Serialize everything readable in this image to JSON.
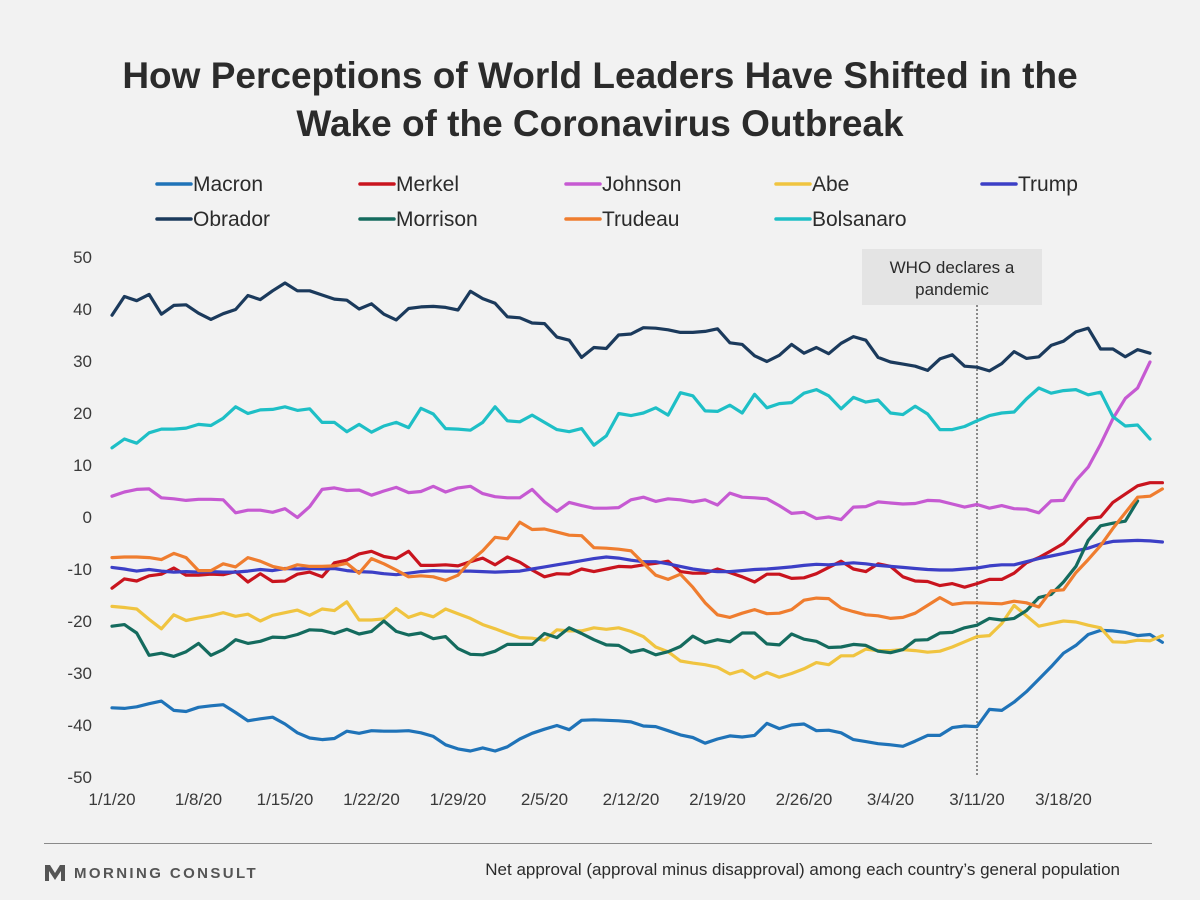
{
  "title_line1": "How Perceptions of World Leaders Have Shifted in the",
  "title_line2": "Wake of the Coronavirus Outbreak",
  "annotation": [
    "WHO declares a",
    "pandemic"
  ],
  "footer": {
    "logo_text": "MORNING CONSULT",
    "note": "Net approval (approval minus disapproval) among each country’s general population"
  },
  "chart_data": {
    "type": "line",
    "title": "How Perceptions of World Leaders Have Shifted in the Wake of the Coronavirus Outbreak",
    "ylim": [
      -50,
      50
    ],
    "yticks": [
      50,
      40,
      30,
      20,
      10,
      0,
      -10,
      -20,
      -30,
      -40,
      -50
    ],
    "x_start": "1/1/20",
    "x_end": "3/24/20",
    "xticks": [
      "1/1/20",
      "1/8/20",
      "1/15/20",
      "1/22/20",
      "1/29/20",
      "2/5/20",
      "2/12/20",
      "2/19/20",
      "2/26/20",
      "3/4/20",
      "3/11/20",
      "3/18/20"
    ],
    "event_line": {
      "date": "3/11/20",
      "label": "WHO declares a pandemic"
    },
    "legend_position": "top",
    "series": [
      {
        "name": "Macron",
        "color": "#1f73b8",
        "values": [
          -36.7,
          -36.8,
          -36.5,
          -35.9,
          -35.4,
          -37.2,
          -37.4,
          -36.6,
          -36.3,
          -36.1,
          -37.6,
          -39.2,
          -38.8,
          -38.5,
          -39.8,
          -41.5,
          -42.5,
          -42.8,
          -42.6,
          -41.2,
          -41.6,
          -41.1,
          -41.2,
          -41.2,
          -41.1,
          -41.5,
          -42.2,
          -43.8,
          -44.6,
          -45.0,
          -44.4,
          -45.0,
          -44.2,
          -42.7,
          -41.6,
          -40.8,
          -40.1,
          -40.9,
          -39.1,
          -39.0,
          -39.1,
          -39.2,
          -39.4,
          -40.2,
          -40.3,
          -41.1,
          -41.9,
          -42.4,
          -43.5,
          -42.7,
          -42.1,
          -42.3,
          -42.0,
          -39.7,
          -40.7,
          -40.0,
          -39.8,
          -41.1,
          -41.0,
          -41.5,
          -42.8,
          -43.2,
          -43.6,
          -43.8,
          -44.1,
          -43.1,
          -42.0,
          -42.0,
          -40.5,
          -40.2,
          -40.3,
          -37.0,
          -37.2,
          -35.6,
          -33.6,
          -31.2,
          -28.8,
          -26.2,
          -24.7,
          -22.6,
          -21.8,
          -21.9,
          -22.2,
          -22.8,
          -22.6,
          -24.1
        ]
      },
      {
        "name": "Merkel",
        "color": "#c9141e",
        "values": [
          -13.7,
          -11.9,
          -12.3,
          -11.3,
          -11.0,
          -9.8,
          -11.2,
          -11.2,
          -11.0,
          -11.1,
          -10.5,
          -12.5,
          -10.9,
          -12.4,
          -12.3,
          -11.0,
          -10.6,
          -11.5,
          -8.8,
          -8.3,
          -7.1,
          -6.6,
          -7.6,
          -8.0,
          -6.6,
          -9.3,
          -9.3,
          -9.2,
          -9.4,
          -8.6,
          -7.9,
          -9.2,
          -7.7,
          -8.7,
          -10.2,
          -11.5,
          -10.9,
          -11.0,
          -10.0,
          -10.5,
          -10.0,
          -9.5,
          -9.6,
          -9.2,
          -8.9,
          -8.5,
          -10.5,
          -10.8,
          -10.8,
          -10.0,
          -10.7,
          -11.5,
          -12.5,
          -11.0,
          -11.0,
          -11.8,
          -11.7,
          -10.9,
          -9.7,
          -8.5,
          -10.0,
          -10.5,
          -9.0,
          -9.5,
          -11.5,
          -12.3,
          -12.4,
          -13.2,
          -12.8,
          -13.5,
          -12.8,
          -12.0,
          -12.0,
          -10.8,
          -8.8,
          -7.8,
          -6.5,
          -5.1,
          -2.7,
          -0.3,
          0.0,
          2.8,
          4.4,
          6.0,
          6.6,
          6.6
        ]
      },
      {
        "name": "Johnson",
        "color": "#c65ad2",
        "values": [
          4.0,
          4.8,
          5.3,
          5.4,
          3.7,
          3.5,
          3.2,
          3.4,
          3.4,
          3.3,
          0.8,
          1.3,
          1.3,
          0.9,
          1.6,
          -0.1,
          2.0,
          5.3,
          5.6,
          5.1,
          5.2,
          4.2,
          5.0,
          5.7,
          4.7,
          4.9,
          5.9,
          4.8,
          5.6,
          5.9,
          4.5,
          3.9,
          3.7,
          3.7,
          5.3,
          2.9,
          1.1,
          2.8,
          2.2,
          1.7,
          1.7,
          1.8,
          3.3,
          3.8,
          3.0,
          3.5,
          3.3,
          2.9,
          3.3,
          2.3,
          4.6,
          3.8,
          3.7,
          3.5,
          2.2,
          0.7,
          0.9,
          -0.3,
          0.0,
          -0.5,
          1.9,
          2.0,
          2.9,
          2.7,
          2.5,
          2.6,
          3.2,
          3.1,
          2.5,
          1.9,
          2.4,
          1.7,
          2.2,
          1.6,
          1.5,
          0.8,
          3.1,
          3.2,
          7.0,
          9.6,
          14.0,
          18.9,
          22.8,
          24.8,
          29.8
        ]
      },
      {
        "name": "Abe",
        "color": "#f0c440",
        "values": [
          -17.2,
          -17.4,
          -17.7,
          -19.7,
          -21.5,
          -18.8,
          -19.9,
          -19.4,
          -19.0,
          -18.4,
          -19.1,
          -18.7,
          -20.0,
          -18.9,
          -18.4,
          -17.9,
          -18.9,
          -17.7,
          -18.0,
          -16.3,
          -19.8,
          -19.8,
          -19.6,
          -17.6,
          -19.3,
          -18.5,
          -19.2,
          -17.7,
          -18.6,
          -19.5,
          -20.7,
          -21.5,
          -22.4,
          -23.2,
          -23.3,
          -23.7,
          -21.7,
          -21.9,
          -21.9,
          -21.3,
          -21.6,
          -21.3,
          -22.0,
          -23.0,
          -25.0,
          -25.9,
          -27.7,
          -28.1,
          -28.4,
          -28.9,
          -30.2,
          -29.5,
          -31.0,
          -29.9,
          -30.8,
          -30.1,
          -29.2,
          -28.0,
          -28.4,
          -26.7,
          -26.7,
          -25.4,
          -25.7,
          -25.7,
          -25.5,
          -25.7,
          -26.0,
          -25.8,
          -25.0,
          -24.0,
          -23.0,
          -22.8,
          -20.5,
          -17.0,
          -19.0,
          -21.0,
          -20.5,
          -20.0,
          -20.2,
          -20.8,
          -21.3,
          -24.0,
          -24.1,
          -23.7,
          -23.8,
          -22.8
        ]
      },
      {
        "name": "Trump",
        "color": "#3c3fc6",
        "values": [
          -9.7,
          -10.0,
          -10.4,
          -10.1,
          -10.4,
          -10.6,
          -10.5,
          -10.6,
          -10.5,
          -10.6,
          -10.6,
          -10.4,
          -10.1,
          -10.3,
          -9.9,
          -10.0,
          -9.9,
          -10.0,
          -9.9,
          -10.3,
          -10.5,
          -10.6,
          -10.9,
          -11.1,
          -10.8,
          -10.5,
          -10.3,
          -10.4,
          -10.4,
          -10.4,
          -10.5,
          -10.6,
          -10.5,
          -10.4,
          -10.0,
          -9.6,
          -9.2,
          -8.8,
          -8.4,
          -8.0,
          -7.7,
          -7.9,
          -8.3,
          -8.6,
          -8.6,
          -9.0,
          -9.5,
          -10.0,
          -10.3,
          -10.5,
          -10.5,
          -10.3,
          -10.1,
          -10.0,
          -9.8,
          -9.6,
          -9.3,
          -9.1,
          -9.2,
          -9.0,
          -8.8,
          -9.0,
          -9.3,
          -9.5,
          -9.7,
          -9.9,
          -10.1,
          -10.2,
          -10.2,
          -10.0,
          -9.8,
          -9.4,
          -9.2,
          -9.2,
          -8.6,
          -8.0,
          -7.5,
          -7.0,
          -6.5,
          -6.0,
          -5.2,
          -4.7,
          -4.6,
          -4.5,
          -4.6,
          -4.8
        ]
      },
      {
        "name": "Obrador",
        "color": "#1b3a5c",
        "values": [
          38.8,
          42.4,
          41.6,
          42.8,
          39.0,
          40.7,
          40.8,
          39.2,
          38.0,
          39.1,
          39.9,
          42.6,
          41.8,
          43.5,
          45.0,
          43.5,
          43.5,
          42.7,
          41.9,
          41.7,
          40.0,
          41.0,
          39.0,
          37.9,
          40.1,
          40.4,
          40.5,
          40.3,
          39.8,
          43.4,
          42.0,
          41.1,
          38.5,
          38.3,
          37.3,
          37.2,
          34.6,
          34.0,
          30.7,
          32.6,
          32.4,
          35.0,
          35.2,
          36.4,
          36.3,
          36.0,
          35.5,
          35.5,
          35.7,
          36.2,
          33.5,
          33.2,
          31.0,
          29.9,
          31.1,
          33.2,
          31.5,
          32.6,
          31.4,
          33.4,
          34.7,
          34.0,
          30.7,
          29.8,
          29.4,
          29.0,
          28.2,
          30.4,
          31.2,
          29.0,
          28.8,
          28.1,
          29.5,
          31.8,
          30.5,
          30.8,
          33.0,
          33.8,
          35.6,
          36.3,
          32.3,
          32.3,
          30.8,
          32.2,
          31.5
        ]
      },
      {
        "name": "Morrison",
        "color": "#146b5e",
        "values": [
          -21.0,
          -20.7,
          -22.3,
          -26.6,
          -26.2,
          -26.8,
          -25.9,
          -24.3,
          -26.6,
          -25.5,
          -23.6,
          -24.3,
          -23.9,
          -23.1,
          -23.2,
          -22.6,
          -21.7,
          -21.8,
          -22.4,
          -21.6,
          -22.5,
          -22.0,
          -20.0,
          -22.0,
          -22.7,
          -22.3,
          -23.4,
          -23.0,
          -25.3,
          -26.4,
          -26.5,
          -25.8,
          -24.5,
          -24.5,
          -24.5,
          -22.4,
          -23.2,
          -21.3,
          -22.4,
          -23.6,
          -24.6,
          -24.7,
          -26.0,
          -25.5,
          -26.5,
          -25.9,
          -24.9,
          -22.9,
          -24.2,
          -23.6,
          -24.0,
          -22.3,
          -22.3,
          -24.4,
          -24.6,
          -22.5,
          -23.5,
          -23.9,
          -25.1,
          -25.0,
          -24.5,
          -24.7,
          -25.8,
          -26.1,
          -25.5,
          -23.7,
          -23.6,
          -22.3,
          -22.2,
          -21.3,
          -20.8,
          -19.5,
          -19.8,
          -19.5,
          -18.0,
          -15.5,
          -14.9,
          -12.5,
          -9.5,
          -4.5,
          -1.7,
          -1.2,
          -0.8,
          3.1
        ]
      },
      {
        "name": "Trudeau",
        "color": "#ef7d2f",
        "values": [
          -7.8,
          -7.7,
          -7.7,
          -7.8,
          -8.2,
          -7.0,
          -7.8,
          -10.3,
          -10.3,
          -9.0,
          -9.6,
          -7.8,
          -8.5,
          -9.5,
          -10.0,
          -9.2,
          -9.5,
          -9.5,
          -9.4,
          -8.9,
          -10.8,
          -8.0,
          -9.0,
          -10.2,
          -11.5,
          -11.3,
          -11.5,
          -12.2,
          -11.2,
          -8.5,
          -6.5,
          -3.9,
          -4.2,
          -1.0,
          -2.4,
          -2.3,
          -2.9,
          -3.5,
          -3.6,
          -5.9,
          -6.0,
          -6.2,
          -6.5,
          -8.9,
          -11.2,
          -12.0,
          -11.0,
          -13.5,
          -16.5,
          -18.8,
          -19.3,
          -18.5,
          -17.8,
          -18.6,
          -18.5,
          -17.8,
          -16.0,
          -15.6,
          -15.7,
          -17.5,
          -18.2,
          -18.8,
          -19.0,
          -19.5,
          -19.3,
          -18.5,
          -17.0,
          -15.5,
          -16.8,
          -16.5,
          -16.5,
          -16.6,
          -16.7,
          -16.2,
          -16.5,
          -17.3,
          -14.2,
          -14.0,
          -10.7,
          -8.2,
          -5.5,
          -2.2,
          0.8,
          3.8,
          4.0,
          5.4
        ]
      },
      {
        "name": "Bolsanaro",
        "color": "#1ebfc6",
        "values": [
          13.3,
          15.0,
          14.2,
          16.2,
          16.9,
          16.9,
          17.1,
          17.8,
          17.6,
          19.0,
          21.2,
          19.9,
          20.6,
          20.7,
          21.2,
          20.5,
          20.8,
          18.2,
          18.2,
          16.4,
          17.8,
          16.3,
          17.5,
          18.2,
          17.2,
          20.9,
          19.8,
          17.0,
          16.9,
          16.7,
          18.2,
          21.2,
          18.5,
          18.3,
          19.6,
          18.2,
          16.8,
          16.4,
          17.0,
          13.8,
          15.6,
          19.9,
          19.5,
          20.0,
          21.0,
          19.6,
          23.9,
          23.3,
          20.4,
          20.3,
          21.5,
          20.0,
          23.6,
          21.0,
          21.8,
          22.0,
          23.8,
          24.5,
          23.3,
          20.8,
          23.0,
          22.1,
          22.5,
          20.0,
          19.7,
          21.3,
          19.8,
          16.8,
          16.8,
          17.4,
          18.5,
          19.5,
          20.0,
          20.2,
          22.7,
          24.8,
          23.8,
          24.3,
          24.5,
          23.5,
          24.0,
          19.3,
          17.5,
          17.7,
          15.0
        ]
      }
    ]
  }
}
